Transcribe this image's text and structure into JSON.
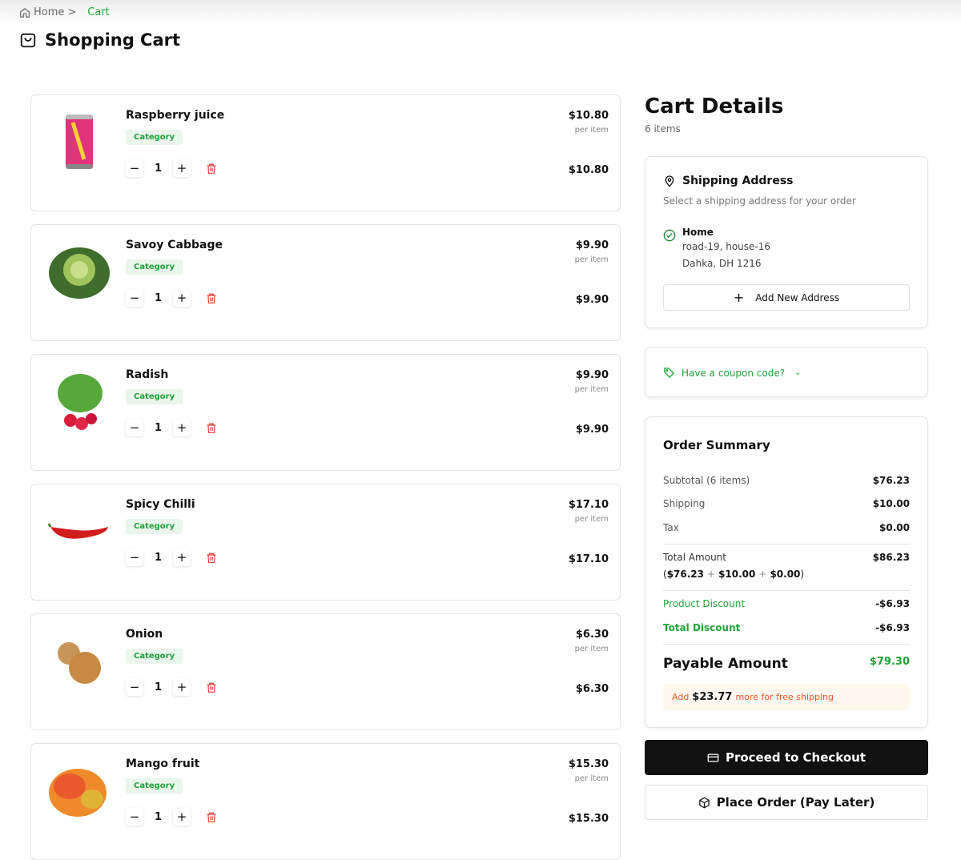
{
  "breadcrumb": {
    "home": "Home",
    "separator": ">",
    "current": "Cart"
  },
  "page_title": "Shopping Cart",
  "items": [
    {
      "name": "Raspberry juice",
      "category": "Category",
      "quantity": "1",
      "price": "$10.80",
      "per": "per item",
      "total": "$10.80",
      "image": "can"
    },
    {
      "name": "Savoy Cabbage",
      "category": "Category",
      "quantity": "1",
      "price": "$9.90",
      "per": "per item",
      "total": "$9.90",
      "image": "cabbage"
    },
    {
      "name": "Radish",
      "category": "Category",
      "quantity": "1",
      "price": "$9.90",
      "per": "per item",
      "total": "$9.90",
      "image": "radish"
    },
    {
      "name": "Spicy Chilli",
      "category": "Category",
      "quantity": "1",
      "price": "$17.10",
      "per": "per item",
      "total": "$17.10",
      "image": "chilli"
    },
    {
      "name": "Onion",
      "category": "Category",
      "quantity": "1",
      "price": "$6.30",
      "per": "per item",
      "total": "$6.30",
      "image": "onion"
    },
    {
      "name": "Mango fruit",
      "category": "Category",
      "quantity": "1",
      "price": "$15.30",
      "per": "per item",
      "total": "$15.30",
      "image": "mango"
    }
  ],
  "cart_details": {
    "title": "Cart Details",
    "count": "6 items"
  },
  "shipping": {
    "title": "Shipping Address",
    "subtitle": "Select a shipping address for your order",
    "address_label": "Home",
    "line1": "road-19, house-16",
    "line2": "Dahka, DH 1216",
    "add_button": "Add New Address"
  },
  "coupon": {
    "label": "Have a coupon code?"
  },
  "summary": {
    "title": "Order Summary",
    "subtotal_label": "Subtotal (6 items)",
    "subtotal": "$76.23",
    "shipping_label": "Shipping",
    "shipping": "$10.00",
    "tax_label": "Tax",
    "tax": "$0.00",
    "total_label": "Total Amount",
    "total": "$86.23",
    "breakdown_open": "(",
    "b1": "$76.23",
    "plus": "+",
    "b2": "$10.00",
    "b3": "$0.00",
    "breakdown_close": ")",
    "product_discount_label": "Product Discount",
    "product_discount": "-$6.93",
    "total_discount_label": "Total Discount",
    "total_discount": "-$6.93",
    "payable_label": "Payable Amount",
    "payable": "$79.30",
    "free_ship_pre": "Add",
    "free_ship_amount": "$23.77",
    "free_ship_post": "more for free shipping"
  },
  "actions": {
    "checkout": "Proceed to Checkout",
    "pay_later": "Place Order (Pay Later)"
  },
  "colors": {
    "accent": "#1fa33a",
    "danger": "#e53935",
    "dark": "#111111",
    "notice_bg": "#fff8ee",
    "notice_text": "#f0552a"
  }
}
